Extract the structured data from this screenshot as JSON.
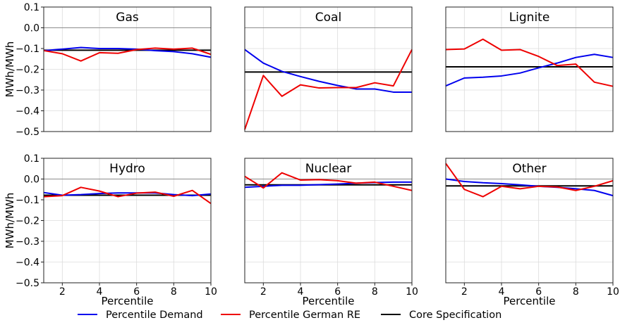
{
  "chart_data": {
    "type": "line",
    "layout": "2x3 small multiples",
    "xlabel": "Percentile",
    "ylabel": "MWh/MWh",
    "xlim": [
      1,
      10
    ],
    "ylim": [
      -0.5,
      0.1
    ],
    "xticks": [
      2,
      4,
      6,
      8,
      10
    ],
    "yticks": [
      0.1,
      0.0,
      -0.1,
      -0.2,
      -0.3,
      -0.4,
      -0.5
    ],
    "ytick_labels": [
      "0.1",
      "0.0",
      "−0.1",
      "−0.2",
      "−0.3",
      "−0.4",
      "−0.5"
    ],
    "grid": true,
    "zero_line": true,
    "legend": {
      "placement": "bottom-center",
      "entries": [
        {
          "label": "Percentile Demand",
          "color": "#0000ee"
        },
        {
          "label": "Percentile German RE",
          "color": "#ee0000"
        },
        {
          "label": "Core Specification",
          "color": "#000000"
        }
      ]
    },
    "x": [
      1,
      2,
      3,
      4,
      5,
      6,
      7,
      8,
      9,
      10
    ],
    "panels": [
      {
        "title": "Gas",
        "demand": [
          -0.11,
          -0.103,
          -0.095,
          -0.1,
          -0.1,
          -0.103,
          -0.11,
          -0.115,
          -0.125,
          -0.142
        ],
        "german_re": [
          -0.11,
          -0.125,
          -0.16,
          -0.12,
          -0.123,
          -0.105,
          -0.098,
          -0.103,
          -0.098,
          -0.128
        ],
        "core": -0.108
      },
      {
        "title": "Coal",
        "demand": [
          -0.105,
          -0.17,
          -0.21,
          -0.235,
          -0.258,
          -0.278,
          -0.295,
          -0.295,
          -0.31,
          -0.31
        ],
        "german_re": [
          -0.49,
          -0.23,
          -0.33,
          -0.275,
          -0.29,
          -0.288,
          -0.288,
          -0.265,
          -0.28,
          -0.105
        ],
        "core": -0.213
      },
      {
        "title": "Lignite",
        "demand": [
          -0.28,
          -0.242,
          -0.238,
          -0.232,
          -0.218,
          -0.193,
          -0.17,
          -0.143,
          -0.128,
          -0.143
        ],
        "german_re": [
          -0.105,
          -0.102,
          -0.055,
          -0.108,
          -0.105,
          -0.138,
          -0.182,
          -0.175,
          -0.262,
          -0.282
        ],
        "core": -0.188
      },
      {
        "title": "Hydro",
        "demand": [
          -0.065,
          -0.078,
          -0.075,
          -0.07,
          -0.067,
          -0.067,
          -0.067,
          -0.075,
          -0.08,
          -0.072
        ],
        "german_re": [
          -0.085,
          -0.08,
          -0.04,
          -0.058,
          -0.085,
          -0.068,
          -0.063,
          -0.083,
          -0.055,
          -0.118
        ],
        "core": -0.078
      },
      {
        "title": "Nuclear",
        "demand": [
          -0.04,
          -0.035,
          -0.03,
          -0.03,
          -0.027,
          -0.024,
          -0.02,
          -0.017,
          -0.015,
          -0.015
        ],
        "german_re": [
          0.013,
          -0.043,
          0.03,
          -0.005,
          -0.003,
          -0.008,
          -0.02,
          -0.015,
          -0.035,
          -0.055
        ],
        "core": -0.028
      },
      {
        "title": "Other",
        "demand": [
          0.0,
          -0.012,
          -0.018,
          -0.022,
          -0.028,
          -0.035,
          -0.04,
          -0.047,
          -0.055,
          -0.08
        ],
        "german_re": [
          0.075,
          -0.05,
          -0.085,
          -0.035,
          -0.047,
          -0.035,
          -0.038,
          -0.055,
          -0.035,
          -0.008
        ],
        "core": -0.033
      }
    ]
  }
}
